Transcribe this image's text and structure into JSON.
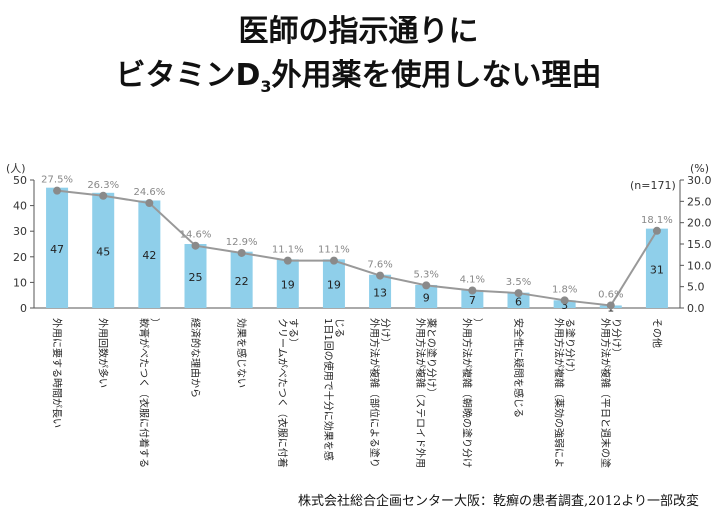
{
  "title_line1": "医師の指示通りに",
  "title_line2_pre": "ビタミンD",
  "title_line2_sub": "3",
  "title_line2_post": "外用薬を使用しない理由",
  "source": "株式会社総合企画センター大阪：乾癬の患者調査,2012より一部改変",
  "chart_data": {
    "type": "bar",
    "categories": [
      "外用に要する時間が長い",
      "外用回数が多い",
      "軟膏がべたつく（衣服に付着する）",
      "経済的な理由から",
      "効果を感じない",
      "クリームがべたつく（衣服に付着する）",
      "1日1回の使用で十分に効果を感じる",
      "外用方法が複雑（部位による塗り分け）",
      "外用方法が複雑（ステロイド外用薬との塗り分け）",
      "外用方法が複雑（朝晩の塗り分け）",
      "安全性に疑問を感じる",
      "外用方法が複雑（薬効の強弱による塗り分け）",
      "外用方法が複雑（平日と週末の塗り分け）",
      "その他"
    ],
    "series": [
      {
        "type": "bar",
        "values": [
          47,
          45,
          42,
          25,
          22,
          19,
          19,
          13,
          9,
          7,
          6,
          3,
          1,
          31
        ],
        "axis": "left",
        "color": "#8fcfea"
      },
      {
        "type": "line",
        "values": [
          27.5,
          26.3,
          24.6,
          14.6,
          12.9,
          11.1,
          11.1,
          7.6,
          5.3,
          4.1,
          3.5,
          1.8,
          0.6,
          18.1
        ],
        "labels": [
          "27.5%",
          "26.3%",
          "24.6%",
          "14.6%",
          "12.9%",
          "11.1%",
          "11.1%",
          "7.6%",
          "5.3%",
          "4.1%",
          "3.5%",
          "1.8%",
          "0.6%",
          "18.1%"
        ],
        "axis": "right",
        "color": "#999999"
      }
    ],
    "y_left": {
      "unit": "(人)",
      "ticks": [
        "0",
        "10",
        "20",
        "30",
        "40",
        "50"
      ],
      "range": [
        0,
        50
      ]
    },
    "y_right": {
      "unit": "(%)",
      "ticks": [
        "0.0",
        "5.0",
        "10.0",
        "15.0",
        "20.0",
        "25.0",
        "30.0"
      ],
      "range": [
        0,
        30
      ]
    },
    "annotation": "(n=171)",
    "grid": false
  }
}
